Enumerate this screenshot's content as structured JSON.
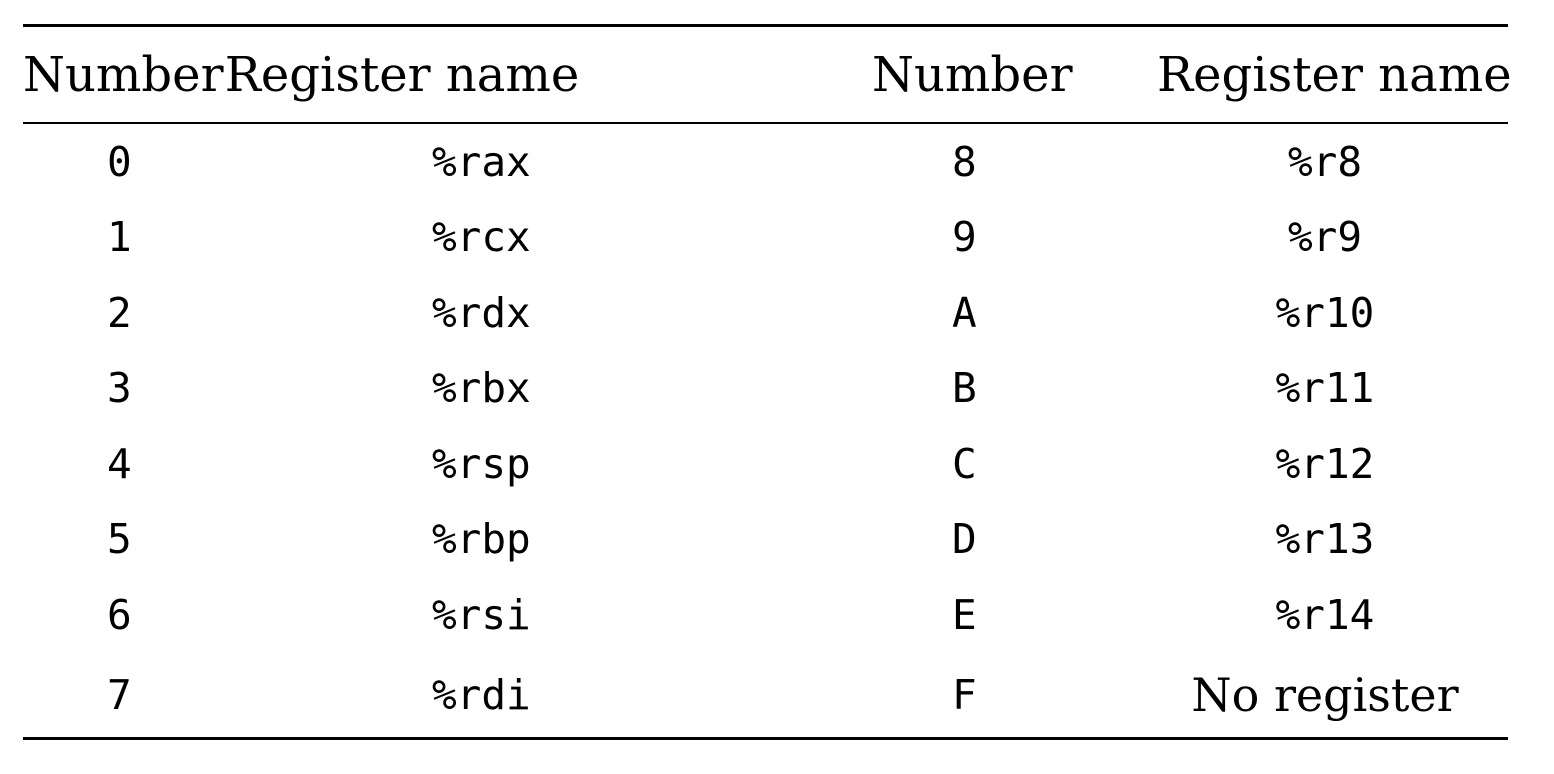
{
  "headers": [
    "Number",
    "Register name",
    "Number",
    "Register name"
  ],
  "rows": [
    {
      "n1": "0",
      "r1": "%rax",
      "n2": "8",
      "r2": "%r8"
    },
    {
      "n1": "1",
      "r1": "%rcx",
      "n2": "9",
      "r2": "%r9"
    },
    {
      "n1": "2",
      "r1": "%rdx",
      "n2": "A",
      "r2": "%r10"
    },
    {
      "n1": "3",
      "r1": "%rbx",
      "n2": "B",
      "r2": "%r11"
    },
    {
      "n1": "4",
      "r1": "%rsp",
      "n2": "C",
      "r2": "%r12"
    },
    {
      "n1": "5",
      "r1": "%rbp",
      "n2": "D",
      "r2": "%r13"
    },
    {
      "n1": "6",
      "r1": "%rsi",
      "n2": "E",
      "r2": "%r14"
    },
    {
      "n1": "7",
      "r1": "%rdi",
      "n2": "F",
      "r2": "No register"
    }
  ]
}
